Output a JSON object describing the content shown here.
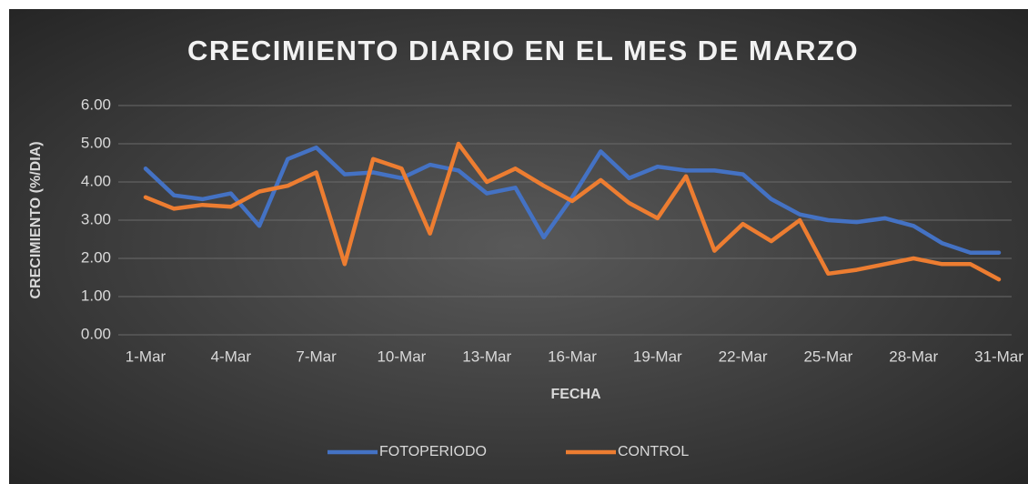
{
  "chart_data": {
    "type": "line",
    "title": "CRECIMIENTO DIARIO EN EL MES DE MARZO",
    "x_label": "FECHA",
    "y_label": "CRECIMIENTO (%/DIA)",
    "categories": [
      "1-Mar",
      null,
      null,
      "4-Mar",
      null,
      null,
      "7-Mar",
      null,
      null,
      "10-Mar",
      null,
      null,
      "13-Mar",
      null,
      null,
      "16-Mar",
      null,
      null,
      "19-Mar",
      null,
      null,
      "22-Mar",
      null,
      null,
      "25-Mar",
      null,
      null,
      "28-Mar",
      null,
      null,
      "31-Mar"
    ],
    "series": [
      {
        "name": "FOTOPERIODO",
        "color": "#4472c4",
        "values": [
          4.35,
          3.65,
          3.55,
          3.7,
          2.85,
          4.6,
          4.9,
          4.2,
          4.25,
          4.1,
          4.45,
          4.3,
          3.7,
          3.85,
          2.55,
          3.6,
          4.8,
          4.1,
          4.4,
          4.3,
          4.3,
          4.2,
          3.55,
          3.15,
          3.0,
          2.95,
          3.05,
          2.85,
          2.4,
          2.15,
          2.15
        ]
      },
      {
        "name": "CONTROL",
        "color": "#ed7d31",
        "values": [
          3.6,
          3.3,
          3.4,
          3.35,
          3.75,
          3.9,
          4.25,
          1.85,
          4.6,
          4.35,
          2.65,
          5.0,
          4.0,
          4.35,
          3.9,
          3.5,
          4.05,
          3.45,
          3.05,
          4.15,
          2.2,
          2.9,
          2.45,
          3.0,
          1.6,
          1.7,
          1.85,
          2.0,
          1.85,
          1.85,
          1.45
        ]
      }
    ],
    "ylim": [
      0,
      6
    ],
    "yticks": [
      {
        "value": 0,
        "label": "0.00"
      },
      {
        "value": 1,
        "label": "1.00"
      },
      {
        "value": 2,
        "label": "2.00"
      },
      {
        "value": 3,
        "label": "3.00"
      },
      {
        "value": 4,
        "label": "4.00"
      },
      {
        "value": 5,
        "label": "5.00"
      },
      {
        "value": 6,
        "label": "6.00"
      }
    ],
    "grid": true,
    "legend": "bottom"
  }
}
